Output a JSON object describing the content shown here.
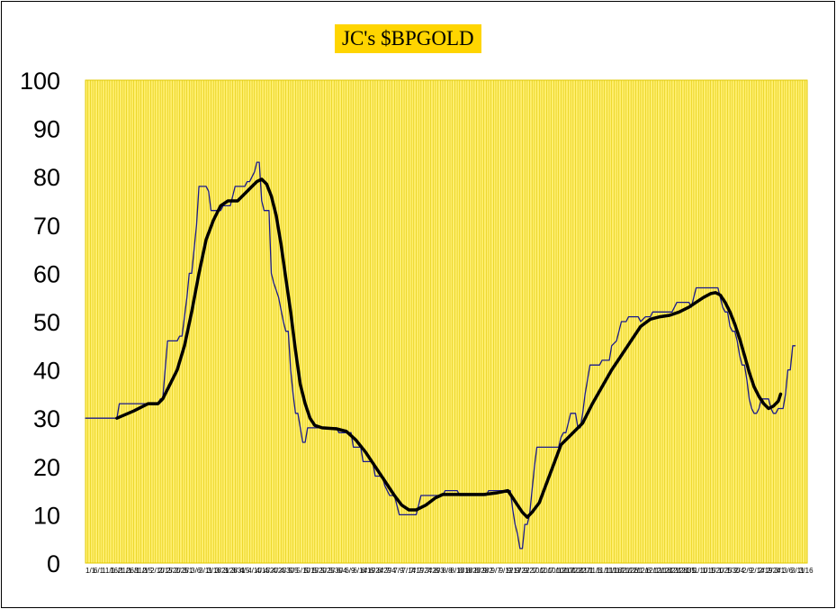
{
  "chart_data": {
    "type": "line",
    "title": "JC's $BPGOLD",
    "xlabel": "",
    "ylabel": "",
    "ylim": [
      0,
      100
    ],
    "yticks": [
      0,
      10,
      20,
      30,
      40,
      50,
      60,
      70,
      80,
      90,
      100
    ],
    "x_tick_labels": [
      "1/1",
      "6/1",
      "11/1",
      "16/1",
      "21/1",
      "26/1",
      "31/1",
      "2/5",
      "2/10",
      "2/15",
      "2/20",
      "2/25",
      "3/1",
      "3/6",
      "3/11",
      "3/16",
      "3/21",
      "3/26",
      "3/31",
      "4/5",
      "4/10",
      "4/15",
      "4/20",
      "4/25",
      "4/30",
      "5/5",
      "5/10",
      "5/15",
      "5/20",
      "5/25",
      "5/30",
      "6/4",
      "6/9",
      "6/14",
      "6/19",
      "6/24",
      "6/29",
      "7/4",
      "7/9",
      "7/14",
      "7/19",
      "7/24",
      "7/29",
      "8/3",
      "8/8",
      "8/13",
      "8/18",
      "8/23",
      "8/28",
      "9/2",
      "9/7",
      "9/12",
      "9/17",
      "9/22",
      "9/27",
      "10/2",
      "10/7",
      "10/12",
      "10/17",
      "10/22",
      "10/27",
      "11/1",
      "11/6",
      "11/11",
      "11/16",
      "11/21",
      "11/26",
      "12/1",
      "12/6",
      "12/11",
      "12/16",
      "12/21",
      "12/26",
      "12/31",
      "1/5",
      "1/10",
      "1/15",
      "1/20",
      "1/25",
      "1/30",
      "2/4",
      "2/9",
      "2/14",
      "2/19",
      "2/24",
      "3/1",
      "3/6",
      "3/11",
      "3/16"
    ],
    "grid": "vertical",
    "plot_background": "#ffef70",
    "grid_color": "#e0c800",
    "x_count": 300,
    "series": [
      {
        "name": "",
        "style": "thin",
        "color": "#1a1a8c",
        "points": [
          [
            0,
            30
          ],
          [
            13,
            30
          ],
          [
            14,
            33
          ],
          [
            30,
            33
          ],
          [
            31,
            34
          ],
          [
            32,
            34
          ],
          [
            33,
            40
          ],
          [
            34,
            46
          ],
          [
            38,
            46
          ],
          [
            39,
            47
          ],
          [
            40,
            47
          ],
          [
            42,
            55
          ],
          [
            43,
            60
          ],
          [
            44,
            60
          ],
          [
            45,
            65
          ],
          [
            46,
            70
          ],
          [
            47,
            78
          ],
          [
            50,
            78
          ],
          [
            51,
            77
          ],
          [
            52,
            73
          ],
          [
            56,
            73
          ],
          [
            57,
            74
          ],
          [
            60,
            74
          ],
          [
            61,
            76
          ],
          [
            62,
            78
          ],
          [
            66,
            78
          ],
          [
            67,
            79
          ],
          [
            68,
            79
          ],
          [
            70,
            81
          ],
          [
            71,
            83
          ],
          [
            72,
            83
          ],
          [
            73,
            75
          ],
          [
            74,
            73
          ],
          [
            76,
            73
          ],
          [
            77,
            60
          ],
          [
            78,
            58
          ],
          [
            80,
            55
          ],
          [
            82,
            50
          ],
          [
            83,
            48
          ],
          [
            84,
            48
          ],
          [
            85,
            40
          ],
          [
            86,
            35
          ],
          [
            87,
            31
          ],
          [
            88,
            31
          ],
          [
            89,
            28
          ],
          [
            90,
            25
          ],
          [
            91,
            25
          ],
          [
            92,
            28
          ],
          [
            104,
            28
          ],
          [
            105,
            27
          ],
          [
            110,
            27
          ],
          [
            111,
            24
          ],
          [
            114,
            24
          ],
          [
            115,
            21
          ],
          [
            119,
            21
          ],
          [
            120,
            18
          ],
          [
            123,
            18
          ],
          [
            124,
            16
          ],
          [
            126,
            14
          ],
          [
            128,
            14
          ],
          [
            129,
            12
          ],
          [
            130,
            10
          ],
          [
            137,
            10
          ],
          [
            138,
            12
          ],
          [
            139,
            14
          ],
          [
            148,
            14
          ],
          [
            149,
            15
          ],
          [
            154,
            15
          ],
          [
            155,
            14
          ],
          [
            166,
            14
          ],
          [
            167,
            15
          ],
          [
            176,
            15
          ],
          [
            177,
            11
          ],
          [
            178,
            8
          ],
          [
            179,
            6
          ],
          [
            180,
            3
          ],
          [
            181,
            3
          ],
          [
            182,
            8
          ],
          [
            183,
            8
          ],
          [
            184,
            10
          ],
          [
            185,
            15
          ],
          [
            186,
            20
          ],
          [
            187,
            24
          ],
          [
            196,
            24
          ],
          [
            197,
            26
          ],
          [
            198,
            27
          ],
          [
            199,
            27
          ],
          [
            200,
            29
          ],
          [
            201,
            31
          ],
          [
            203,
            31
          ],
          [
            204,
            28
          ],
          [
            205,
            28
          ],
          [
            206,
            31
          ],
          [
            207,
            35
          ],
          [
            208,
            38
          ],
          [
            209,
            41
          ],
          [
            213,
            41
          ],
          [
            214,
            42
          ],
          [
            217,
            42
          ],
          [
            218,
            45
          ],
          [
            220,
            46
          ],
          [
            222,
            50
          ],
          [
            224,
            50
          ],
          [
            225,
            51
          ],
          [
            229,
            51
          ],
          [
            230,
            50
          ],
          [
            232,
            51
          ],
          [
            234,
            51
          ],
          [
            235,
            52
          ],
          [
            243,
            52
          ],
          [
            244,
            53
          ],
          [
            245,
            54
          ],
          [
            250,
            54
          ],
          [
            251,
            53
          ],
          [
            252,
            55
          ],
          [
            253,
            57
          ],
          [
            262,
            57
          ],
          [
            263,
            55
          ],
          [
            264,
            53
          ],
          [
            265,
            52
          ],
          [
            266,
            52
          ],
          [
            267,
            49
          ],
          [
            268,
            48
          ],
          [
            269,
            48
          ],
          [
            270,
            46
          ],
          [
            271,
            43
          ],
          [
            272,
            41
          ],
          [
            273,
            41
          ],
          [
            274,
            38
          ],
          [
            275,
            34
          ],
          [
            276,
            32
          ],
          [
            277,
            31
          ],
          [
            278,
            31
          ],
          [
            279,
            32
          ],
          [
            280,
            34
          ],
          [
            283,
            34
          ],
          [
            284,
            32
          ],
          [
            285,
            31
          ],
          [
            286,
            31
          ],
          [
            287,
            32
          ],
          [
            289,
            32
          ],
          [
            290,
            35
          ],
          [
            291,
            40
          ],
          [
            292,
            40
          ],
          [
            293,
            45
          ],
          [
            294,
            45
          ]
        ]
      },
      {
        "name": "",
        "style": "thick",
        "color": "#000000",
        "points": [
          [
            13,
            30
          ],
          [
            20,
            31.5
          ],
          [
            26,
            33
          ],
          [
            30,
            33
          ],
          [
            32,
            34
          ],
          [
            35,
            37
          ],
          [
            38,
            40
          ],
          [
            41,
            45
          ],
          [
            44,
            52
          ],
          [
            47,
            60
          ],
          [
            50,
            67
          ],
          [
            53,
            71
          ],
          [
            56,
            74
          ],
          [
            59,
            75
          ],
          [
            63,
            75
          ],
          [
            66,
            76.5
          ],
          [
            69,
            78
          ],
          [
            71,
            79
          ],
          [
            73,
            79.5
          ],
          [
            75,
            78.5
          ],
          [
            77,
            76
          ],
          [
            79,
            72
          ],
          [
            81,
            66
          ],
          [
            83,
            59
          ],
          [
            85,
            52
          ],
          [
            87,
            44
          ],
          [
            89,
            37
          ],
          [
            91,
            33
          ],
          [
            93,
            30
          ],
          [
            95,
            28.5
          ],
          [
            98,
            28
          ],
          [
            104,
            27.8
          ],
          [
            108,
            27.3
          ],
          [
            112,
            25.5
          ],
          [
            116,
            23
          ],
          [
            120,
            20
          ],
          [
            124,
            17
          ],
          [
            128,
            14
          ],
          [
            131,
            12
          ],
          [
            134,
            11
          ],
          [
            137,
            11
          ],
          [
            141,
            12
          ],
          [
            145,
            13.5
          ],
          [
            148,
            14.2
          ],
          [
            155,
            14.2
          ],
          [
            165,
            14.2
          ],
          [
            170,
            14.5
          ],
          [
            175,
            15
          ],
          [
            177,
            13.5
          ],
          [
            179,
            12
          ],
          [
            181,
            10.5
          ],
          [
            183,
            9.5
          ],
          [
            185,
            10.5
          ],
          [
            188,
            12.5
          ],
          [
            191,
            16.5
          ],
          [
            194,
            20.5
          ],
          [
            197,
            24.5
          ],
          [
            200,
            26
          ],
          [
            203,
            27.5
          ],
          [
            206,
            29
          ],
          [
            210,
            33
          ],
          [
            214,
            36.5
          ],
          [
            218,
            40
          ],
          [
            222,
            43
          ],
          [
            226,
            46
          ],
          [
            230,
            49
          ],
          [
            234,
            50.5
          ],
          [
            238,
            51
          ],
          [
            242,
            51.3
          ],
          [
            246,
            52
          ],
          [
            250,
            53
          ],
          [
            253,
            54
          ],
          [
            256,
            55
          ],
          [
            259,
            55.8
          ],
          [
            261,
            56
          ],
          [
            263,
            55.5
          ],
          [
            265,
            54
          ],
          [
            267,
            52
          ],
          [
            269,
            49.5
          ],
          [
            271,
            46.5
          ],
          [
            273,
            43
          ],
          [
            275,
            39.5
          ],
          [
            277,
            36.5
          ],
          [
            279,
            34.5
          ],
          [
            281,
            33
          ],
          [
            283,
            32
          ],
          [
            285,
            32.5
          ],
          [
            287,
            33.5
          ],
          [
            288,
            35
          ]
        ]
      }
    ]
  }
}
